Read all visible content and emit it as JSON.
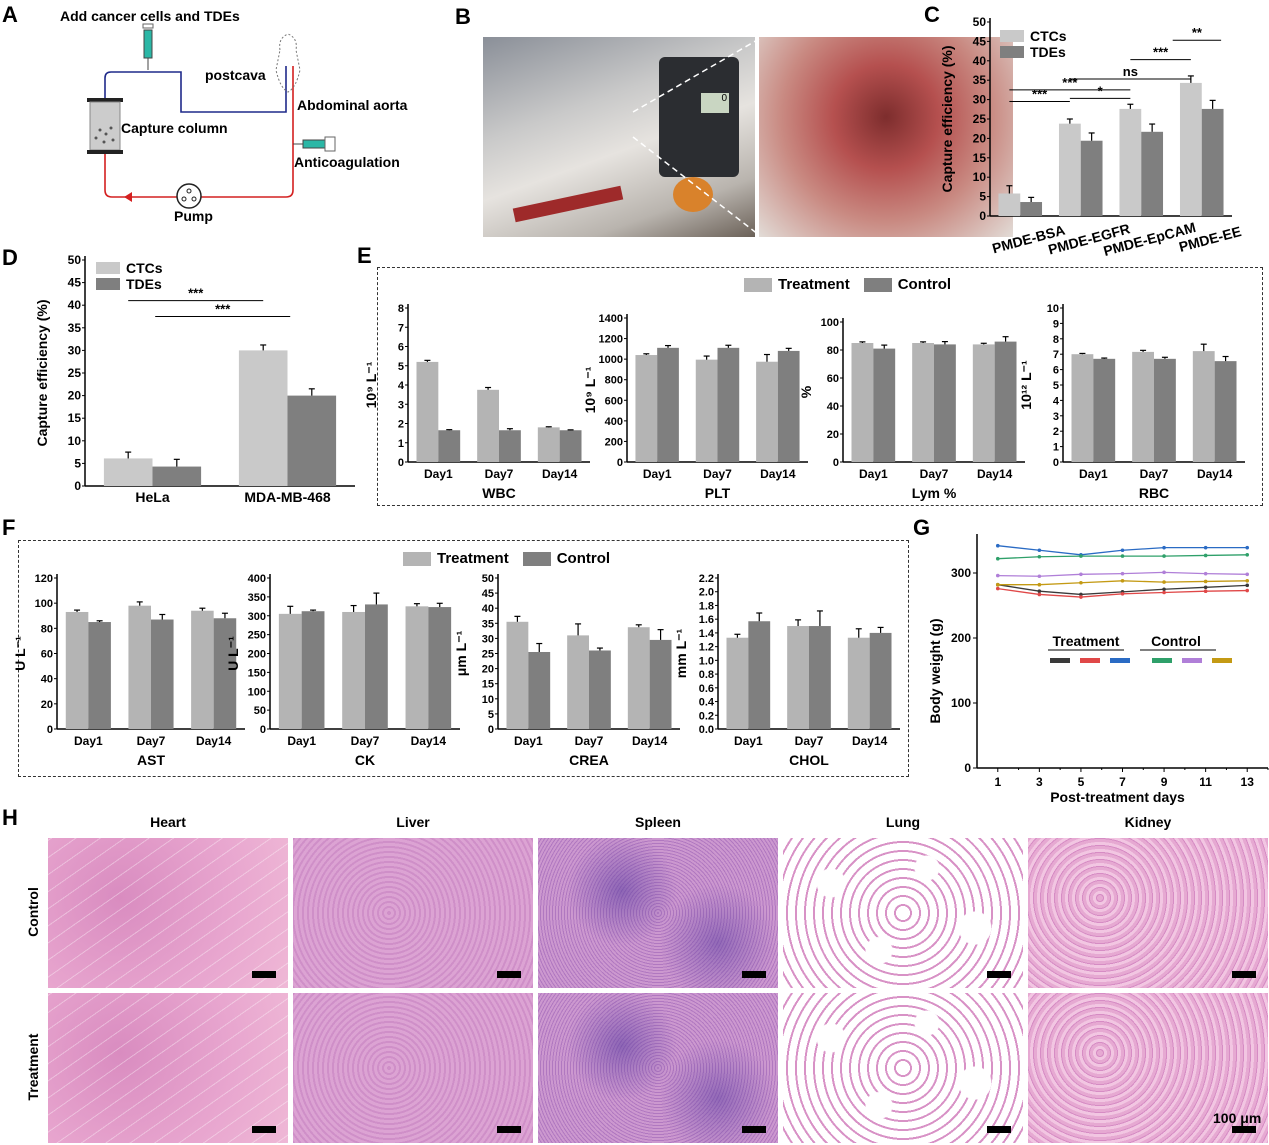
{
  "panels": {
    "A": {
      "letter": "A",
      "add_label": "Add cancer cells and TDEs",
      "postcava": "postcava",
      "aorta": "Abdominal aorta",
      "column": "Capture column",
      "anticoag": "Anticoagulation",
      "pump": "Pump",
      "colors": {
        "venous": "#1f2a8a",
        "arterial": "#d42020",
        "syringe_fluid": "#2bb7a6"
      }
    },
    "B": {
      "letter": "B",
      "pump_display": "0"
    },
    "C": {
      "letter": "C"
    },
    "D": {
      "letter": "D"
    },
    "E": {
      "letter": "E",
      "legend_treatment": "Treatment",
      "legend_control": "Control"
    },
    "F": {
      "letter": "F",
      "legend_treatment": "Treatment",
      "legend_control": "Control"
    },
    "G": {
      "letter": "G"
    },
    "H": {
      "letter": "H",
      "organs": [
        "Heart",
        "Liver",
        "Spleen",
        "Lung",
        "Kidney"
      ],
      "rows": [
        "Control",
        "Treatment"
      ],
      "scale_label": "100 μm"
    }
  },
  "colors": {
    "light_bar": "#b4b4b4",
    "ctc_bar": "#c9c9c9",
    "dark_bar": "#7f7f7f"
  },
  "chart_data": [
    {
      "id": "C",
      "type": "bar",
      "title": "",
      "ylabel": "Capture efficiency (%)",
      "ylim": [
        0,
        50
      ],
      "ytick_step": 5,
      "categories": [
        "PMDE-BSA",
        "PMDE-EGFR",
        "PMDE-EpCAM",
        "PMDE-EE"
      ],
      "legend": "top-left",
      "series": [
        {
          "name": "CTCs",
          "values": [
            5.8,
            23.8,
            27.6,
            34.3
          ],
          "errors": [
            2.0,
            1.2,
            1.2,
            1.8
          ]
        },
        {
          "name": "TDEs",
          "values": [
            3.6,
            19.4,
            21.7,
            27.6
          ],
          "errors": [
            1.2,
            2.0,
            2.0,
            2.2
          ]
        }
      ],
      "significance": [
        {
          "label": "***",
          "from": 0,
          "to": 1,
          "level": 29.5
        },
        {
          "label": "***",
          "from": 0,
          "to": 2,
          "level": 32.5
        },
        {
          "label": "*",
          "from": 1,
          "to": 2,
          "level": 30.3
        },
        {
          "label": "ns",
          "from": 1,
          "to": 3,
          "level": 35.3
        },
        {
          "label": "***",
          "from": 2,
          "to": 3,
          "level": 40.3
        },
        {
          "label": "**",
          "from": 2.7,
          "to": 3.5,
          "level": 45.3
        }
      ]
    },
    {
      "id": "D",
      "type": "bar",
      "title": "",
      "ylabel": "Capture efficiency (%)",
      "ylim": [
        0,
        50
      ],
      "ytick_step": 5,
      "categories": [
        "HeLa",
        "MDA-MB-468"
      ],
      "legend": "top-left",
      "series": [
        {
          "name": "CTCs",
          "values": [
            6.1,
            30.0
          ],
          "errors": [
            1.4,
            1.2
          ]
        },
        {
          "name": "TDEs",
          "values": [
            4.3,
            20.0
          ],
          "errors": [
            1.6,
            1.5
          ]
        }
      ],
      "significance": [
        {
          "label": "***",
          "from": 0,
          "to": 1,
          "level": 41
        },
        {
          "label": "***",
          "from": 0.2,
          "to": 1.2,
          "level": 37.5
        }
      ]
    },
    {
      "id": "WBC",
      "type": "bar",
      "title": "WBC",
      "ylabel": "10⁹ L⁻¹",
      "ylim": [
        0,
        8
      ],
      "ytick_step": 1,
      "categories": [
        "Day1",
        "Day7",
        "Day14"
      ],
      "series": [
        {
          "name": "Treatment",
          "values": [
            5.2,
            3.75,
            1.8
          ],
          "errors": [
            0.08,
            0.12,
            0.03
          ]
        },
        {
          "name": "Control",
          "values": [
            1.65,
            1.65,
            1.65
          ],
          "errors": [
            0.03,
            0.08,
            0.02
          ]
        }
      ]
    },
    {
      "id": "PLT",
      "type": "bar",
      "title": "PLT",
      "ylabel": "10⁹ L⁻¹",
      "ylim": [
        0,
        1400
      ],
      "ytick_step": 200,
      "categories": [
        "Day1",
        "Day7",
        "Day14"
      ],
      "series": [
        {
          "name": "Treatment",
          "values": [
            1040,
            995,
            975
          ],
          "errors": [
            12,
            35,
            70
          ]
        },
        {
          "name": "Control",
          "values": [
            1110,
            1110,
            1080
          ],
          "errors": [
            22,
            25,
            25
          ]
        }
      ]
    },
    {
      "id": "Lym",
      "type": "bar",
      "title": "Lym %",
      "ylabel": "%",
      "ylim": [
        0,
        100
      ],
      "ytick_step": 20,
      "categories": [
        "Day1",
        "Day7",
        "Day14"
      ],
      "series": [
        {
          "name": "Treatment",
          "values": [
            85,
            85,
            84
          ],
          "errors": [
            0.8,
            0.8,
            0.8
          ]
        },
        {
          "name": "Control",
          "values": [
            81,
            84,
            86
          ],
          "errors": [
            2.5,
            2.0,
            3.5
          ]
        }
      ]
    },
    {
      "id": "RBC",
      "type": "bar",
      "title": "RBC",
      "ylabel": "10¹² L⁻¹",
      "ylim": [
        0,
        10
      ],
      "ytick_step": 1,
      "categories": [
        "Day1",
        "Day7",
        "Day14"
      ],
      "series": [
        {
          "name": "Treatment",
          "values": [
            7.0,
            7.15,
            7.2
          ],
          "errors": [
            0.05,
            0.1,
            0.45
          ]
        },
        {
          "name": "Control",
          "values": [
            6.7,
            6.7,
            6.55
          ],
          "errors": [
            0.05,
            0.1,
            0.3
          ]
        }
      ]
    },
    {
      "id": "AST",
      "type": "bar",
      "title": "AST",
      "ylabel": "U L⁻¹",
      "ylim": [
        0,
        120
      ],
      "ytick_step": 20,
      "categories": [
        "Day1",
        "Day7",
        "Day14"
      ],
      "series": [
        {
          "name": "Treatment",
          "values": [
            93,
            98,
            94
          ],
          "errors": [
            1.5,
            3,
            2
          ]
        },
        {
          "name": "Control",
          "values": [
            85,
            87,
            88
          ],
          "errors": [
            1,
            4,
            4
          ]
        }
      ]
    },
    {
      "id": "CK",
      "type": "bar",
      "title": "CK",
      "ylabel": "U L⁻¹",
      "ylim": [
        0,
        400
      ],
      "ytick_step": 50,
      "categories": [
        "Day1",
        "Day7",
        "Day14"
      ],
      "series": [
        {
          "name": "Treatment",
          "values": [
            305,
            310,
            325
          ],
          "errors": [
            20,
            17,
            7
          ]
        },
        {
          "name": "Control",
          "values": [
            312,
            330,
            323
          ],
          "errors": [
            3,
            30,
            10
          ]
        }
      ]
    },
    {
      "id": "CREA",
      "type": "bar",
      "title": "CREA",
      "ylabel": "μm L⁻¹",
      "ylim": [
        0,
        50
      ],
      "ytick_step": 5,
      "categories": [
        "Day1",
        "Day7",
        "Day14"
      ],
      "series": [
        {
          "name": "Treatment",
          "values": [
            35.5,
            31,
            33.7
          ],
          "errors": [
            1.8,
            3.8,
            0.8
          ]
        },
        {
          "name": "Control",
          "values": [
            25.5,
            26,
            29.5
          ],
          "errors": [
            2.8,
            0.8,
            3.4
          ]
        }
      ]
    },
    {
      "id": "CHOL",
      "type": "bar",
      "title": "CHOL",
      "ylabel": "mm L⁻¹",
      "ylim": [
        0,
        2.2
      ],
      "ytick_step": 0.2,
      "categories": [
        "Day1",
        "Day7",
        "Day14"
      ],
      "series": [
        {
          "name": "Treatment",
          "values": [
            1.33,
            1.5,
            1.33
          ],
          "errors": [
            0.05,
            0.09,
            0.13
          ]
        },
        {
          "name": "Control",
          "values": [
            1.57,
            1.5,
            1.4
          ],
          "errors": [
            0.12,
            0.22,
            0.08
          ]
        }
      ]
    },
    {
      "id": "G",
      "type": "line",
      "title": "",
      "xlabel": "Post-treatment days",
      "ylabel": "Body weight (g)",
      "xlim": [
        0,
        14
      ],
      "ylim": [
        0,
        360
      ],
      "xticks": [
        1,
        3,
        5,
        7,
        9,
        11,
        13
      ],
      "yticks": [
        0,
        100,
        200,
        300
      ],
      "x": [
        1,
        3,
        5,
        7,
        9,
        11,
        13
      ],
      "legend_groups": [
        "Treatment",
        "Control"
      ],
      "series": [
        {
          "group": "Treatment",
          "color": "#3a3a3a",
          "values": [
            282,
            272,
            267,
            271,
            275,
            278,
            281
          ]
        },
        {
          "group": "Treatment",
          "color": "#e04848",
          "values": [
            276,
            267,
            263,
            268,
            270,
            272,
            273
          ]
        },
        {
          "group": "Treatment",
          "color": "#2a6bc4",
          "values": [
            342,
            335,
            328,
            335,
            339,
            339,
            339
          ]
        },
        {
          "group": "Control",
          "color": "#2fa06a",
          "values": [
            322,
            325,
            326,
            326,
            326,
            327,
            328
          ]
        },
        {
          "group": "Control",
          "color": "#b07fd8",
          "values": [
            296,
            295,
            298,
            299,
            301,
            299,
            298
          ]
        },
        {
          "group": "Control",
          "color": "#c49a14",
          "values": [
            282,
            282,
            285,
            288,
            286,
            287,
            288
          ]
        }
      ]
    }
  ]
}
